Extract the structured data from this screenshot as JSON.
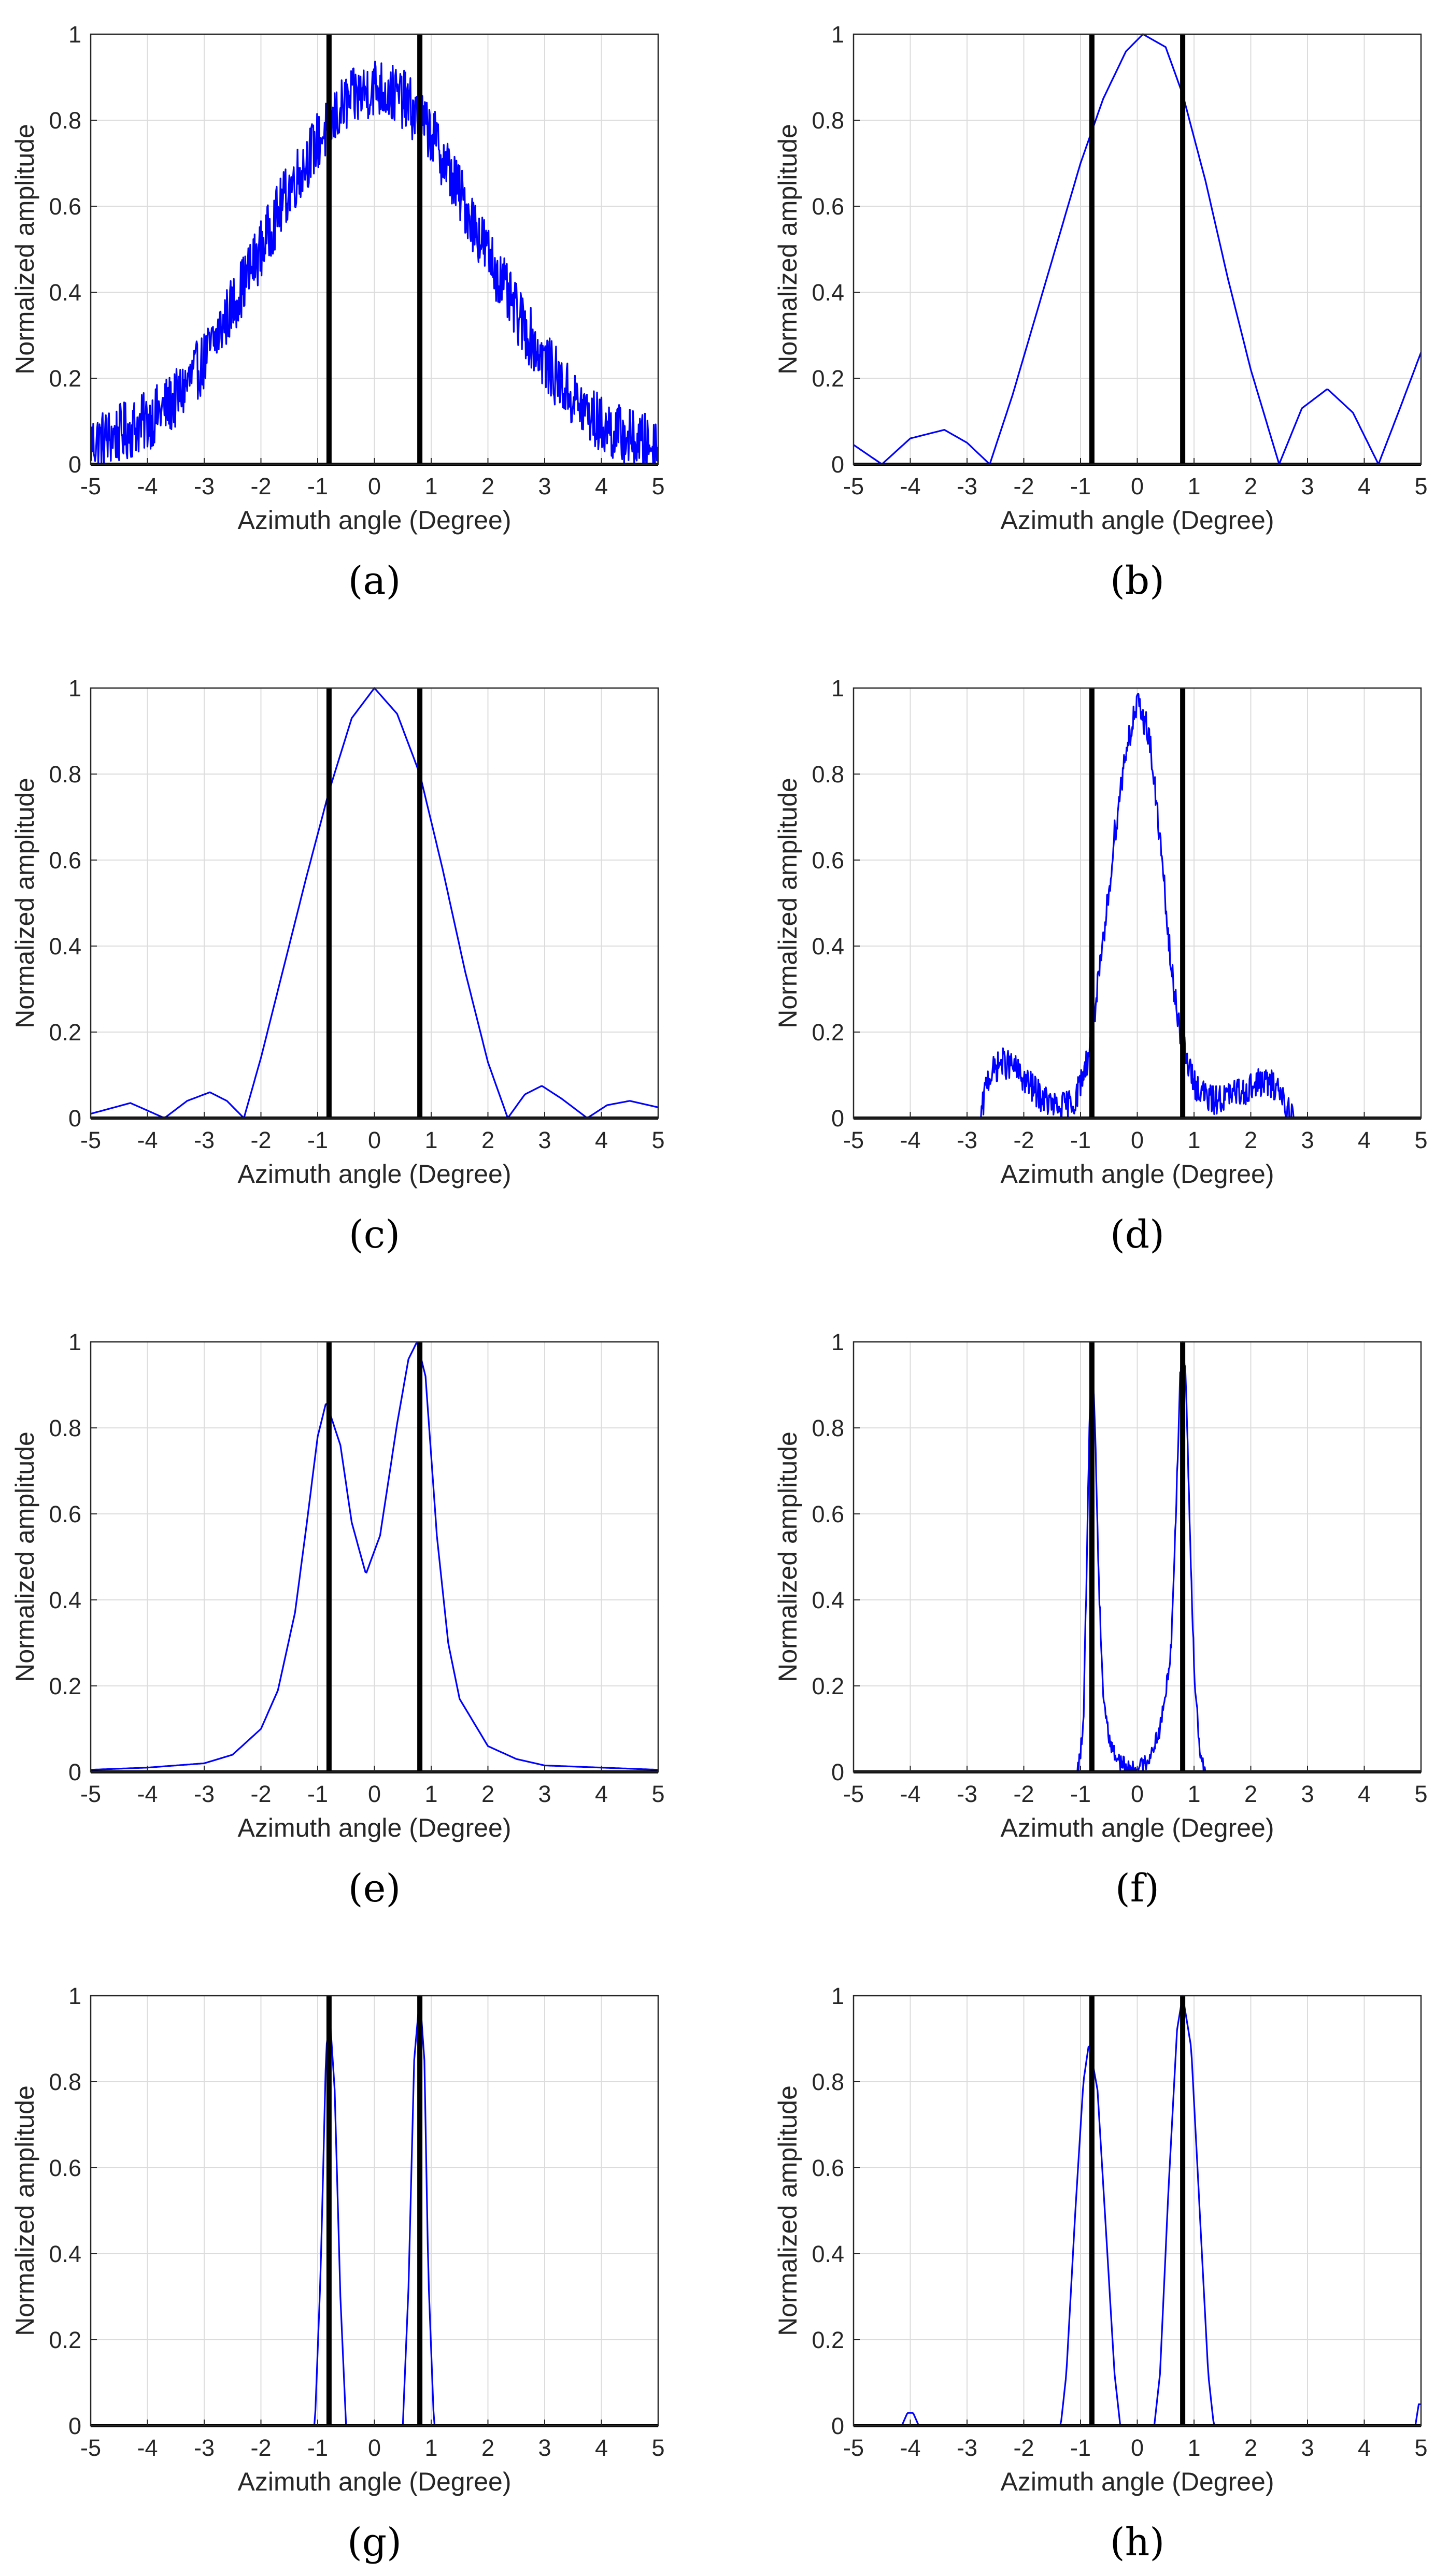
{
  "figure": {
    "colors": {
      "signal": "#0000ff",
      "target": "#000000",
      "grid": "#dcdcdc",
      "axis": "#262626",
      "background": "#ffffff"
    },
    "common": {
      "xlabel": "Azimuth angle (Degree)",
      "ylabel": "Normalized amplitude",
      "xlim": [
        -5,
        5
      ],
      "ylim": [
        0,
        1
      ],
      "xticks": [
        -5,
        -4,
        -3,
        -2,
        -1,
        0,
        1,
        2,
        3,
        4,
        5
      ],
      "yticks": [
        0,
        0.2,
        0.4,
        0.6,
        0.8,
        1
      ],
      "target_angles": [
        -0.8,
        0.8
      ],
      "grid": true
    }
  },
  "chart_data": [
    {
      "type": "line",
      "panel": "a",
      "caption": "(a)",
      "noise": 0.07,
      "title": "",
      "xlabel": "Azimuth angle (Degree)",
      "ylabel": "Normalized amplitude",
      "xlim": [
        -5,
        5
      ],
      "ylim": [
        0,
        1
      ],
      "target_angles": [
        -0.8,
        0.8
      ],
      "series": [
        {
          "name": "Normalized amplitude",
          "x": [
            -5,
            -4.5,
            -4,
            -3.5,
            -3,
            -2.5,
            -2,
            -1.5,
            -1,
            -0.5,
            0,
            0.5,
            1,
            1.5,
            2,
            2.5,
            3,
            3.5,
            4,
            4.5,
            5
          ],
          "y": [
            0.05,
            0.07,
            0.1,
            0.15,
            0.24,
            0.37,
            0.5,
            0.64,
            0.75,
            0.84,
            0.88,
            0.85,
            0.77,
            0.63,
            0.49,
            0.35,
            0.24,
            0.15,
            0.09,
            0.06,
            0.04
          ]
        }
      ]
    },
    {
      "type": "line",
      "panel": "b",
      "caption": "(b)",
      "noise": 0,
      "title": "",
      "xlabel": "Azimuth angle (Degree)",
      "ylabel": "Normalized amplitude",
      "xlim": [
        -5,
        5
      ],
      "ylim": [
        0,
        1
      ],
      "target_angles": [
        -0.8,
        0.8
      ],
      "series": [
        {
          "name": "Normalized amplitude",
          "x": [
            -5,
            -4.5,
            -4,
            -3.4,
            -3,
            -2.6,
            -2.2,
            -1.8,
            -1.4,
            -1,
            -0.6,
            -0.2,
            0.1,
            0.5,
            0.8,
            1.2,
            1.6,
            2,
            2.5,
            2.9,
            3.35,
            3.8,
            4.25,
            4.6,
            5
          ],
          "y": [
            0.045,
            0.0,
            0.06,
            0.08,
            0.05,
            0.0,
            0.16,
            0.34,
            0.52,
            0.7,
            0.85,
            0.96,
            1.0,
            0.97,
            0.86,
            0.66,
            0.43,
            0.22,
            0.0,
            0.13,
            0.175,
            0.12,
            0.0,
            0.12,
            0.26
          ]
        }
      ]
    },
    {
      "type": "line",
      "panel": "c",
      "caption": "(c)",
      "noise": 0,
      "title": "",
      "xlabel": "Azimuth angle (Degree)",
      "ylabel": "Normalized amplitude",
      "xlim": [
        -5,
        5
      ],
      "ylim": [
        0,
        1
      ],
      "target_angles": [
        -0.8,
        0.8
      ],
      "series": [
        {
          "name": "Normalized amplitude",
          "x": [
            -5,
            -4.3,
            -3.7,
            -3.3,
            -2.9,
            -2.6,
            -2.3,
            -2,
            -1.6,
            -1.2,
            -0.8,
            -0.4,
            0,
            0.4,
            0.8,
            1.2,
            1.6,
            2,
            2.35,
            2.65,
            2.95,
            3.3,
            3.75,
            4.1,
            4.5,
            5
          ],
          "y": [
            0.01,
            0.035,
            0.0,
            0.04,
            0.06,
            0.04,
            0.0,
            0.14,
            0.35,
            0.56,
            0.76,
            0.93,
            1.0,
            0.94,
            0.8,
            0.58,
            0.34,
            0.13,
            0.0,
            0.055,
            0.075,
            0.045,
            0.0,
            0.03,
            0.04,
            0.025
          ]
        }
      ]
    },
    {
      "type": "line",
      "panel": "d",
      "caption": "(d)",
      "noise": 0.035,
      "title": "",
      "xlabel": "Azimuth angle (Degree)",
      "ylabel": "Normalized amplitude",
      "xlim": [
        -5,
        5
      ],
      "ylim": [
        0,
        1
      ],
      "target_angles": [
        -0.8,
        0.8
      ],
      "series": [
        {
          "name": "Normalized amplitude",
          "x": [
            -5,
            -2.75,
            -2.65,
            -2.4,
            -2.2,
            -2.0,
            -1.7,
            -1.4,
            -1.1,
            -0.85,
            -0.6,
            -0.4,
            -0.2,
            0,
            0.2,
            0.4,
            0.6,
            0.8,
            1.0,
            1.3,
            1.6,
            1.9,
            2.2,
            2.5,
            2.65,
            2.75,
            5
          ],
          "y": [
            0,
            0,
            0.09,
            0.13,
            0.12,
            0.09,
            0.05,
            0.02,
            0.04,
            0.15,
            0.4,
            0.66,
            0.86,
            0.96,
            0.9,
            0.65,
            0.34,
            0.17,
            0.08,
            0.04,
            0.05,
            0.065,
            0.085,
            0.07,
            0.02,
            0,
            0
          ]
        }
      ]
    },
    {
      "type": "line",
      "panel": "e",
      "caption": "(e)",
      "noise": 0,
      "title": "",
      "xlabel": "Azimuth angle (Degree)",
      "ylabel": "Normalized amplitude",
      "xlim": [
        -5,
        5
      ],
      "ylim": [
        0,
        1
      ],
      "target_angles": [
        -0.8,
        0.8
      ],
      "series": [
        {
          "name": "Normalized amplitude",
          "x": [
            -5,
            -4,
            -3,
            -2.5,
            -2,
            -1.7,
            -1.4,
            -1.2,
            -1.0,
            -0.85,
            -0.6,
            -0.4,
            -0.15,
            0.1,
            0.4,
            0.6,
            0.75,
            0.9,
            1.1,
            1.3,
            1.5,
            2,
            2.5,
            3,
            4,
            5
          ],
          "y": [
            0.005,
            0.01,
            0.02,
            0.04,
            0.1,
            0.19,
            0.37,
            0.57,
            0.78,
            0.86,
            0.76,
            0.58,
            0.46,
            0.55,
            0.81,
            0.96,
            1.0,
            0.92,
            0.55,
            0.3,
            0.17,
            0.06,
            0.03,
            0.015,
            0.01,
            0.005
          ]
        }
      ]
    },
    {
      "type": "line",
      "panel": "f",
      "caption": "(f)",
      "noise": 0.02,
      "title": "",
      "xlabel": "Azimuth angle (Degree)",
      "ylabel": "Normalized amplitude",
      "xlim": [
        -5,
        5
      ],
      "ylim": [
        0,
        1
      ],
      "target_angles": [
        -0.8,
        0.8
      ],
      "series": [
        {
          "name": "Normalized amplitude",
          "x": [
            -5,
            -1.05,
            -0.95,
            -0.88,
            -0.82,
            -0.75,
            -0.68,
            -0.6,
            -0.5,
            -0.4,
            -0.2,
            0,
            0.2,
            0.4,
            0.5,
            0.6,
            0.68,
            0.75,
            0.8,
            0.85,
            0.92,
            1.0,
            1.1,
            1.2,
            5
          ],
          "y": [
            0,
            0,
            0.1,
            0.55,
            0.96,
            0.84,
            0.45,
            0.18,
            0.08,
            0.04,
            0.01,
            0.005,
            0.03,
            0.1,
            0.18,
            0.3,
            0.6,
            0.9,
            1.0,
            0.94,
            0.6,
            0.25,
            0.05,
            0,
            0
          ]
        }
      ]
    },
    {
      "type": "line",
      "panel": "g",
      "caption": "(g)",
      "noise": 0,
      "title": "",
      "xlabel": "Azimuth angle (Degree)",
      "ylabel": "Normalized amplitude",
      "xlim": [
        -5,
        5
      ],
      "ylim": [
        0,
        1
      ],
      "target_angles": [
        -0.8,
        0.8
      ],
      "series": [
        {
          "name": "Normalized amplitude",
          "x": [
            -5,
            -1.05,
            -0.95,
            -0.85,
            -0.78,
            -0.7,
            -0.6,
            -0.5,
            0.5,
            0.6,
            0.7,
            0.8,
            0.88,
            0.95,
            1.05,
            5
          ],
          "y": [
            0,
            0,
            0.35,
            0.88,
            0.94,
            0.78,
            0.3,
            0,
            0,
            0.32,
            0.85,
            1.0,
            0.85,
            0.35,
            0,
            0
          ]
        }
      ]
    },
    {
      "type": "line",
      "panel": "h",
      "caption": "(h)",
      "noise": 0,
      "title": "",
      "xlabel": "Azimuth angle (Degree)",
      "ylabel": "Normalized amplitude",
      "xlim": [
        -5,
        5
      ],
      "ylim": [
        0,
        1
      ],
      "target_angles": [
        -0.8,
        0.8
      ],
      "series": [
        {
          "name": "Normalized amplitude",
          "x": [
            -5,
            -4.15,
            -4.05,
            -3.95,
            -3.85,
            -1.35,
            -1.25,
            -1.1,
            -0.95,
            -0.85,
            -0.7,
            -0.55,
            -0.4,
            -0.3,
            0.3,
            0.4,
            0.55,
            0.7,
            0.8,
            0.95,
            1.1,
            1.25,
            1.35,
            4.9,
            4.96,
            5
          ],
          "y": [
            0,
            0,
            0.03,
            0.03,
            0,
            0,
            0.12,
            0.48,
            0.8,
            0.89,
            0.78,
            0.45,
            0.12,
            0,
            0,
            0.12,
            0.55,
            0.92,
            1.0,
            0.88,
            0.5,
            0.12,
            0,
            0,
            0.05,
            0.05
          ]
        }
      ]
    }
  ]
}
